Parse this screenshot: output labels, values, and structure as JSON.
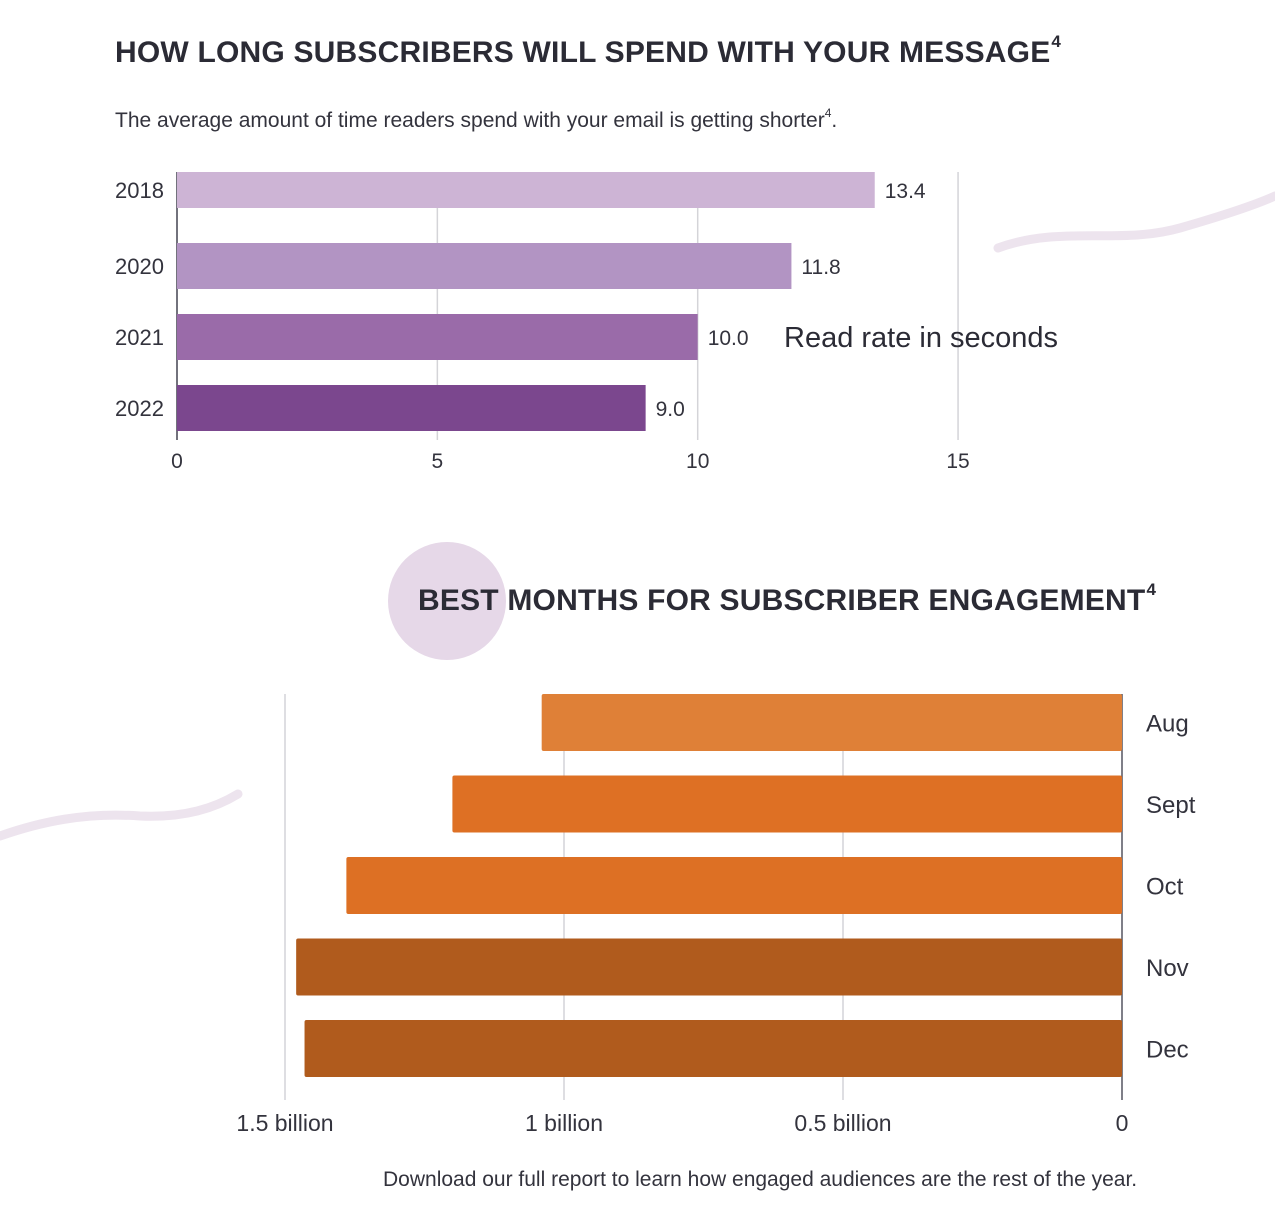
{
  "charts": {
    "read_time": {
      "title": "HOW LONG SUBSCRIBERS WILL SPEND WITH YOUR MESSAGE",
      "title_sup": "4",
      "subtitle": "The average amount of time readers spend with your email is getting shorter",
      "subtitle_sup": "4",
      "subtitle_end": ".",
      "annotation": "Read rate in seconds"
    },
    "engagement": {
      "title": "BEST MONTHS FOR SUBSCRIBER ENGAGEMENT",
      "title_sup": "4",
      "footnote": "Download our full report to learn how engaged audiences are the rest of the year."
    }
  },
  "chart_data": [
    {
      "type": "bar",
      "orientation": "horizontal",
      "title": "HOW LONG SUBSCRIBERS WILL SPEND WITH YOUR MESSAGE",
      "categories": [
        "2018",
        "2020",
        "2021",
        "2022"
      ],
      "values": [
        13.4,
        11.8,
        10.0,
        9.0
      ],
      "data_labels": [
        "13.4",
        "11.8",
        "10.0",
        "9.0"
      ],
      "colors": [
        "#cdb4d5",
        "#b294c3",
        "#9a6ba9",
        "#7b478e"
      ],
      "xlim": [
        0,
        15
      ],
      "xticks": [
        0,
        5,
        10,
        15
      ],
      "xtick_labels": [
        "0",
        "5",
        "10",
        "15"
      ],
      "xlabel": "Read rate in seconds",
      "grid": true
    },
    {
      "type": "bar",
      "orientation": "horizontal",
      "direction": "right-to-left",
      "title": "BEST MONTHS FOR SUBSCRIBER ENGAGEMENT",
      "categories": [
        "Aug",
        "Sept",
        "Oct",
        "Nov",
        "Dec"
      ],
      "values": [
        1.04,
        1.2,
        1.39,
        1.48,
        1.465
      ],
      "unit": "billion",
      "colors": [
        "#df8037",
        "#de7024",
        "#dd7024",
        "#b05b1d",
        "#b05b1d"
      ],
      "xlim": [
        0,
        1.5
      ],
      "xticks": [
        1.5,
        1,
        0.5,
        0
      ],
      "xtick_labels": [
        "1.5 billion",
        "1 billion",
        "0.5 billion",
        "0"
      ],
      "grid": true
    }
  ]
}
